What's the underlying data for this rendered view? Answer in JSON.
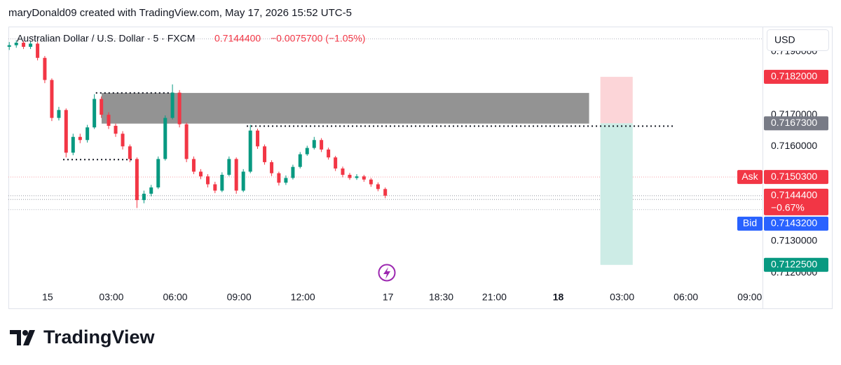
{
  "attribution": "maryDonald09 created with TradingView.com, May 17, 2026 15:52 UTC-5",
  "brand": "TradingView",
  "chart_data": {
    "type": "candlestick",
    "title": "Australian Dollar / U.S. Dollar · 5 · FXCM",
    "last_price": {
      "value": 0.71444,
      "label": "0.7144400"
    },
    "change": "−0.0075700 (−1.05%)",
    "currency": "USD",
    "up_color": "#089981",
    "down_color": "#f23645",
    "xlim": [
      -1.84,
      33.6
    ],
    "ylim": [
      0.71156,
      0.71979
    ],
    "xticks": [
      {
        "value": 0,
        "label": "15"
      },
      {
        "value": 3,
        "label": "03:00"
      },
      {
        "value": 6,
        "label": "06:00"
      },
      {
        "value": 9,
        "label": "09:00"
      },
      {
        "value": 12,
        "label": "12:00"
      },
      {
        "value": 16,
        "label": "17"
      },
      {
        "value": 18.5,
        "label": "18:30"
      },
      {
        "value": 21,
        "label": "21:00"
      },
      {
        "value": 24,
        "label": "18",
        "bold": true
      },
      {
        "value": 27,
        "label": "03:00"
      },
      {
        "value": 30,
        "label": "06:00"
      },
      {
        "value": 33,
        "label": "09:00"
      }
    ],
    "yticks": [
      {
        "value": 0.719,
        "label": "0.7190000"
      },
      {
        "value": 0.717,
        "label": "0.7170000"
      },
      {
        "value": 0.716,
        "label": "0.7160000"
      },
      {
        "value": 0.713,
        "label": "0.7130000"
      },
      {
        "value": 0.712,
        "label": "0.7120000"
      }
    ],
    "x": [
      -1.8,
      -1.47,
      -1.13,
      -0.8,
      -0.47,
      -0.13,
      0.2,
      0.53,
      0.87,
      1.2,
      1.53,
      1.87,
      2.2,
      2.53,
      2.87,
      3.2,
      3.53,
      3.87,
      4.2,
      4.53,
      4.87,
      5.2,
      5.53,
      5.87,
      6.2,
      6.53,
      6.87,
      7.2,
      7.53,
      7.87,
      8.2,
      8.53,
      8.87,
      9.2,
      9.53,
      9.87,
      10.2,
      10.53,
      10.87,
      11.2,
      11.53,
      11.87,
      12.2,
      12.53,
      12.87,
      13.2,
      13.53,
      13.87,
      14.2,
      14.53,
      14.87,
      15.2,
      15.53,
      15.87
    ],
    "open": [
      0.71915,
      0.7192,
      0.71928,
      0.71915,
      0.71925,
      0.7188,
      0.7181,
      0.7169,
      0.71715,
      0.7158,
      0.7163,
      0.7162,
      0.7166,
      0.7175,
      0.717,
      0.71665,
      0.7164,
      0.716,
      0.7156,
      0.7143,
      0.7145,
      0.7147,
      0.7156,
      0.7169,
      0.7177,
      0.7167,
      0.7156,
      0.7152,
      0.71505,
      0.7148,
      0.7146,
      0.7151,
      0.7156,
      0.7146,
      0.7152,
      0.7165,
      0.716,
      0.7155,
      0.71515,
      0.71485,
      0.715,
      0.71535,
      0.71575,
      0.71595,
      0.7162,
      0.7159,
      0.71565,
      0.7153,
      0.7151,
      0.715,
      0.71505,
      0.71495,
      0.7148,
      0.71465
    ],
    "high": [
      0.7193,
      0.71936,
      0.71934,
      0.71932,
      0.7193,
      0.71886,
      0.71815,
      0.71725,
      0.7172,
      0.7164,
      0.7164,
      0.71668,
      0.71765,
      0.71758,
      0.71708,
      0.71672,
      0.71648,
      0.71606,
      0.71565,
      0.7146,
      0.71478,
      0.71568,
      0.71698,
      0.71796,
      0.71778,
      0.71675,
      0.71568,
      0.71528,
      0.71512,
      0.71488,
      0.71518,
      0.71568,
      0.71565,
      0.71528,
      0.71668,
      0.71656,
      0.71606,
      0.71556,
      0.7152,
      0.71508,
      0.71542,
      0.71582,
      0.71602,
      0.7163,
      0.71626,
      0.71596,
      0.7157,
      0.71536,
      0.71516,
      0.71512,
      0.7151,
      0.715,
      0.71486,
      0.7147
    ],
    "low": [
      0.71905,
      0.71912,
      0.71908,
      0.71908,
      0.71872,
      0.718,
      0.7168,
      0.71682,
      0.71565,
      0.71572,
      0.7161,
      0.71612,
      0.71655,
      0.7169,
      0.71655,
      0.7163,
      0.7159,
      0.7155,
      0.71405,
      0.7142,
      0.71442,
      0.71465,
      0.71555,
      0.71685,
      0.7166,
      0.7155,
      0.71512,
      0.71496,
      0.7147,
      0.71452,
      0.71455,
      0.71505,
      0.7145,
      0.71455,
      0.71515,
      0.71592,
      0.71542,
      0.71506,
      0.71476,
      0.71478,
      0.71495,
      0.7153,
      0.7157,
      0.7159,
      0.71582,
      0.71558,
      0.71522,
      0.71502,
      0.71494,
      0.71494,
      0.71488,
      0.71472,
      0.71458,
      0.71436
    ],
    "close": [
      0.7192,
      0.71928,
      0.71915,
      0.71925,
      0.7188,
      0.7181,
      0.7169,
      0.71715,
      0.7158,
      0.7163,
      0.7162,
      0.7166,
      0.7175,
      0.717,
      0.71665,
      0.7164,
      0.716,
      0.7156,
      0.7143,
      0.7145,
      0.7147,
      0.7156,
      0.7169,
      0.7177,
      0.7167,
      0.7156,
      0.7152,
      0.71505,
      0.7148,
      0.7146,
      0.7151,
      0.7156,
      0.7146,
      0.7152,
      0.7165,
      0.716,
      0.7155,
      0.71515,
      0.71485,
      0.715,
      0.71535,
      0.71575,
      0.71595,
      0.7162,
      0.7159,
      0.71565,
      0.7153,
      0.7151,
      0.715,
      0.71505,
      0.71495,
      0.7148,
      0.71465,
      0.71444
    ],
    "level_lines": [
      0.7194,
      0.714
    ],
    "zone": {
      "x": [
        2.54,
        25.45
      ],
      "y": [
        0.71769,
        0.71672
      ],
      "color": "#808080"
    },
    "dotted_lines": [
      {
        "x": [
          2.27,
          5.84
        ],
        "y": 0.71769
      },
      {
        "x": [
          0.73,
          3.96
        ],
        "y": 0.71558
      },
      {
        "x": [
          9.36,
          29.47
        ],
        "y": 0.71664
      }
    ],
    "position": {
      "x": [
        25.98,
        27.5
      ],
      "stop": 0.7182,
      "entry": 0.71673,
      "target": 0.71225,
      "loss_color": "#fcd5d8",
      "profit_color": "#cdece6"
    },
    "price_labels": [
      {
        "value": 0.7182,
        "label": "0.7182000",
        "color": "#f23645"
      },
      {
        "value": 0.71673,
        "label": "0.7167300",
        "color": "#787b86"
      },
      {
        "value": 0.71503,
        "label": "0.7150300",
        "tag": "Ask",
        "color": "#f23645",
        "line_color": "#f7a1a8"
      },
      {
        "value": 0.71444,
        "label": "0.7144400",
        "sub": "−0.67%",
        "color": "#f23645",
        "line_color": "#9598a1"
      },
      {
        "value": 0.71432,
        "label": "0.7143200",
        "tag": "Bid",
        "color": "#2962ff",
        "line_color": "#9598a1"
      },
      {
        "value": 0.71225,
        "label": "0.7122500",
        "color": "#089981"
      }
    ]
  }
}
